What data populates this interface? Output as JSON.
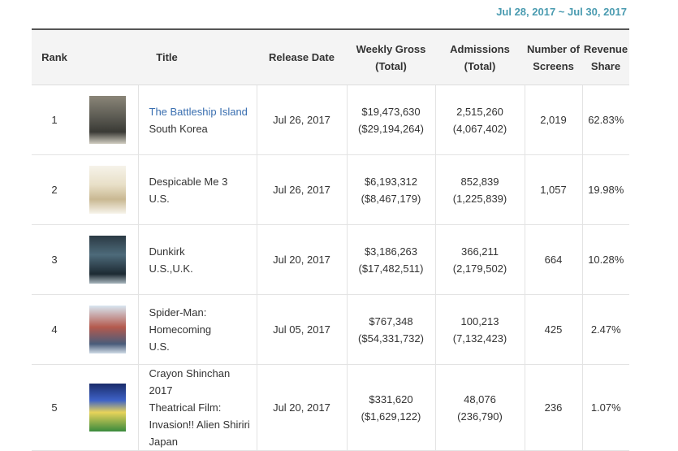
{
  "date_range": "Jul 28, 2017 ~ Jul 30, 2017",
  "headers": {
    "rank": "Rank",
    "title": "Title",
    "release_date": "Release Date",
    "weekly_gross_1": "Weekly Gross",
    "weekly_gross_2": "(Total)",
    "admissions_1": "Admissions",
    "admissions_2": "(Total)",
    "screens_1": "Number of",
    "screens_2": "Screens",
    "revenue_1": "Revenue",
    "revenue_2": "Share"
  },
  "rows": [
    {
      "rank": "1",
      "title_lines": [
        "The Battleship Island",
        "South Korea"
      ],
      "release_date": "Jul 26, 2017",
      "weekly_gross": "$19,473,630",
      "total_gross": "($29,194,264)",
      "admissions": "2,515,260",
      "total_admissions": "(4,067,402)",
      "screens": "2,019",
      "revenue_share": "62.83%"
    },
    {
      "rank": "2",
      "title_lines": [
        "Despicable Me 3",
        "U.S."
      ],
      "release_date": "Jul 26, 2017",
      "weekly_gross": "$6,193,312",
      "total_gross": "($8,467,179)",
      "admissions": "852,839",
      "total_admissions": "(1,225,839)",
      "screens": "1,057",
      "revenue_share": "19.98%"
    },
    {
      "rank": "3",
      "title_lines": [
        "Dunkirk",
        "U.S.,U.K."
      ],
      "release_date": "Jul 20, 2017",
      "weekly_gross": "$3,186,263",
      "total_gross": "($17,482,511)",
      "admissions": "366,211",
      "total_admissions": "(2,179,502)",
      "screens": "664",
      "revenue_share": "10.28%"
    },
    {
      "rank": "4",
      "title_lines": [
        "Spider-Man:",
        "Homecoming",
        "U.S."
      ],
      "release_date": "Jul 05, 2017",
      "weekly_gross": "$767,348",
      "total_gross": "($54,331,732)",
      "admissions": "100,213",
      "total_admissions": "(7,132,423)",
      "screens": "425",
      "revenue_share": "2.47%"
    },
    {
      "rank": "5",
      "title_lines": [
        "Crayon Shinchan 2017",
        "Theatrical Film:",
        "Invasion!! Alien Shiriri",
        "Japan"
      ],
      "release_date": "Jul 20, 2017",
      "weekly_gross": "$331,620",
      "total_gross": "($1,629,122)",
      "admissions": "48,076",
      "total_admissions": "(236,790)",
      "screens": "236",
      "revenue_share": "1.07%"
    }
  ]
}
